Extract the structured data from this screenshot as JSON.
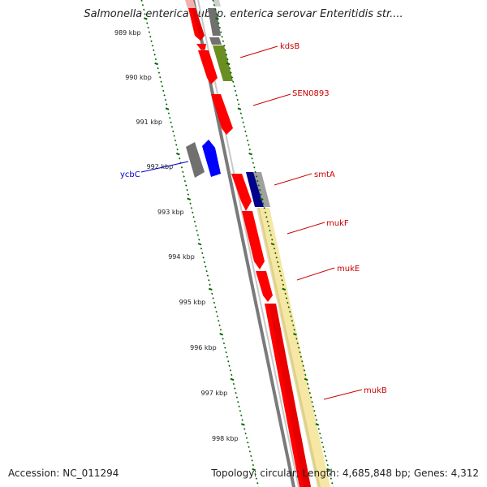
{
  "title": "Salmonella enterica subsp. enterica serovar Enteritidis str....",
  "footer": {
    "accession": "Accession: NC_011294",
    "summary": "Topology: circular; Length: 4,685,848 bp; Genes: 4,312"
  },
  "scale_labels": [
    "989 kbp",
    "990 kbp",
    "991 kbp",
    "992 kbp",
    "993 kbp",
    "994 kbp",
    "995 kbp",
    "996 kbp",
    "997 kbp",
    "998 kbp"
  ],
  "colors": {
    "backbone": "#808080",
    "cds": "#ff0000",
    "trna_like": "#0000ff",
    "gray_feature": "#707070",
    "olive_feature": "#6b8e23",
    "navy_feature": "#00008b",
    "highlight": "#f5e6a0",
    "tick_green": "#006400",
    "label_red": "#cc0000",
    "label_blue": "#0000cc"
  },
  "genes": [
    {
      "name": "kdsB",
      "color": "#cc0000"
    },
    {
      "name": "SEN0893",
      "color": "#cc0000"
    },
    {
      "name": "smtA",
      "color": "#cc0000"
    },
    {
      "name": "mukF",
      "color": "#cc0000"
    },
    {
      "name": "mukE",
      "color": "#cc0000"
    },
    {
      "name": "mukB",
      "color": "#cc0000"
    },
    {
      "name": "ycbC",
      "color": "#0000cc"
    }
  ]
}
